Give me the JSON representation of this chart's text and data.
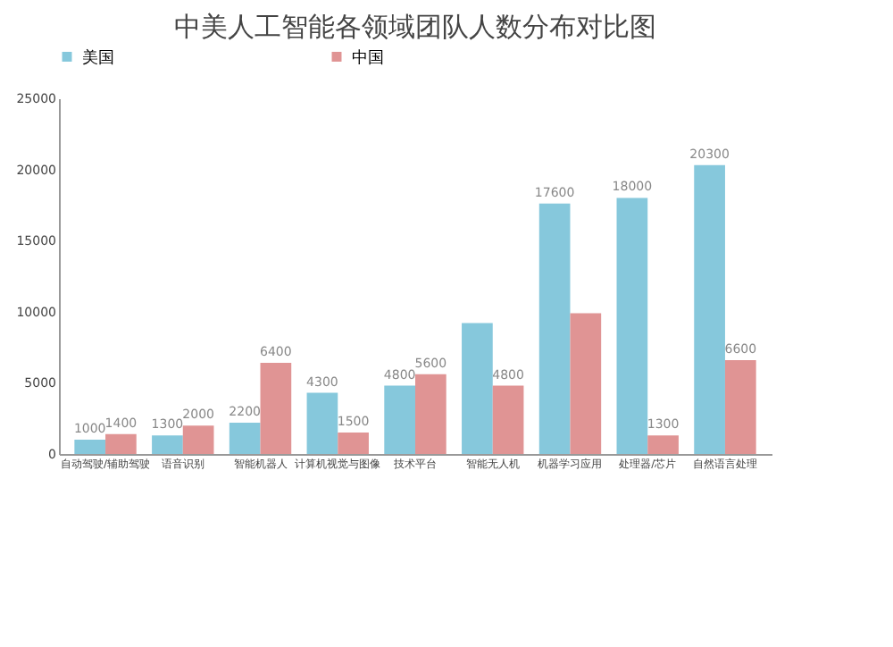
{
  "chart_data": {
    "type": "bar",
    "title": "中美人工智能各领域团队人数分布对比图",
    "categories": [
      "自动驾驶/辅助驾驶",
      "语音识别",
      "智能机器人",
      "计算机视觉与图像",
      "技术平台",
      "智能无人机",
      "机器学习应用",
      "处理器/芯片",
      "自然语言处理"
    ],
    "series": [
      {
        "name": "美国",
        "color": "#86c8dc",
        "values": [
          1000,
          1300,
          2200,
          4300,
          4800,
          9200,
          17600,
          18000,
          20300
        ],
        "value_labels": [
          "1000",
          "1300",
          "2200",
          "4300",
          "4800",
          null,
          "17600",
          "18000",
          "20300"
        ]
      },
      {
        "name": "中国",
        "color": "#e09494",
        "values": [
          1400,
          2000,
          6400,
          1500,
          5600,
          4800,
          9900,
          1300,
          6600
        ],
        "value_labels": [
          "1400",
          "2000",
          "6400",
          "1500",
          "5600",
          "4800",
          null,
          "1300",
          "6600"
        ]
      }
    ],
    "ylim": [
      0,
      25000
    ],
    "yticks": [
      0,
      5000,
      10000,
      15000,
      20000,
      25000
    ],
    "grid": false,
    "legend": "top"
  }
}
